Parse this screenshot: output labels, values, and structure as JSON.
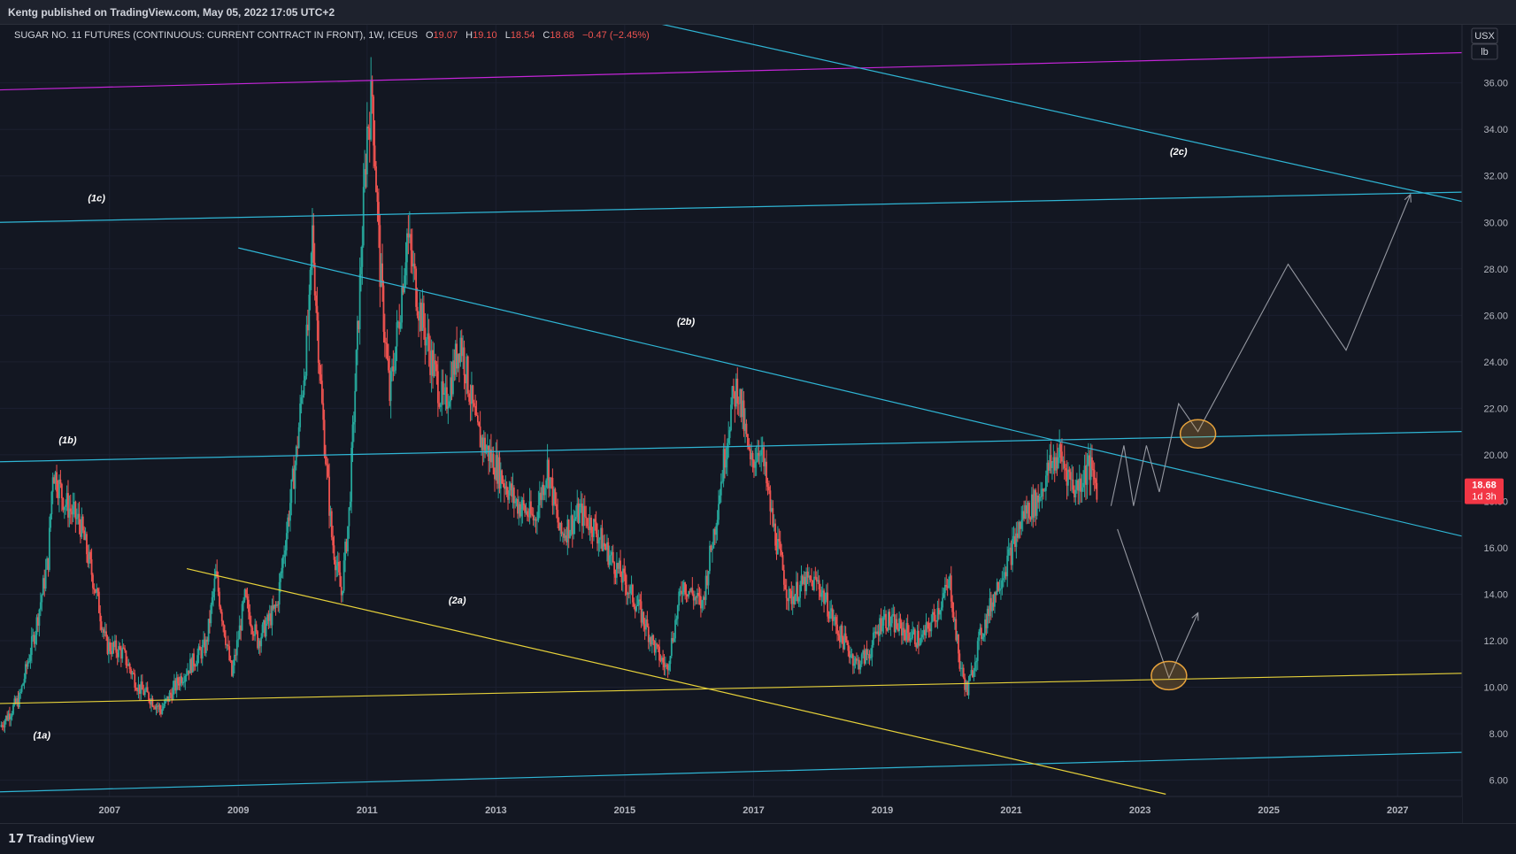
{
  "header": {
    "published": "Kentg published on TradingView.com, May 05, 2022 17:05 UTC+2"
  },
  "footer": {
    "brand": "TradingView",
    "brand_glyph": "17"
  },
  "symbol": {
    "name": "SUGAR NO. 11 FUTURES (CONTINUOUS: CURRENT CONTRACT IN FRONT), 1W, ICEUS",
    "o_label": "O",
    "o": "19.07",
    "h_label": "H",
    "h": "19.10",
    "l_label": "L",
    "l": "18.54",
    "c_label": "C",
    "c": "18.68",
    "change": "−0.47 (−2.45%)"
  },
  "price_scale": {
    "currency": "USX",
    "unit": "lb",
    "last_price": "18.68",
    "countdown": "1d 3h"
  },
  "colors": {
    "bg": "#131722",
    "up": "#26a69a",
    "down": "#ef5350",
    "cyan": "#2fb5d4",
    "magenta": "#c425d8",
    "yellow": "#e6d13a",
    "projection": "#9598a1",
    "circle": "#e6a23c"
  },
  "chart_data": {
    "type": "candlestick",
    "title": "SUGAR NO. 11 FUTURES (CONTINUOUS: CURRENT CONTRACT IN FRONT), 1W, ICEUS",
    "x_ticks": [
      "2007",
      "2009",
      "2011",
      "2013",
      "2015",
      "2017",
      "2019",
      "2021",
      "2023",
      "2025",
      "2027"
    ],
    "y_ticks": [
      "6.00",
      "8.00",
      "10.00",
      "12.00",
      "14.00",
      "16.00",
      "18.00",
      "20.00",
      "22.00",
      "24.00",
      "26.00",
      "28.00",
      "30.00",
      "32.00",
      "34.00",
      "36.00"
    ],
    "xlim": [
      2005.3,
      2028.0
    ],
    "ylim": [
      5.3,
      38.5
    ],
    "series": [
      {
        "interval": "1W",
        "approx_path": [
          [
            2005.3,
            8.3
          ],
          [
            2005.6,
            9.5
          ],
          [
            2005.85,
            12.5
          ],
          [
            2006.05,
            15.5
          ],
          [
            2006.12,
            19.4
          ],
          [
            2006.3,
            18.0
          ],
          [
            2006.55,
            17.0
          ],
          [
            2006.8,
            14.0
          ],
          [
            2006.95,
            11.8
          ],
          [
            2007.2,
            11.5
          ],
          [
            2007.45,
            10.0
          ],
          [
            2007.65,
            9.5
          ],
          [
            2007.8,
            9.0
          ],
          [
            2008.1,
            10.4
          ],
          [
            2008.5,
            11.8
          ],
          [
            2008.65,
            14.8
          ],
          [
            2008.9,
            10.5
          ],
          [
            2009.1,
            13.8
          ],
          [
            2009.3,
            12.0
          ],
          [
            2009.6,
            13.5
          ],
          [
            2009.9,
            20.0
          ],
          [
            2010.1,
            26.0
          ],
          [
            2010.15,
            29.5
          ],
          [
            2010.3,
            22.0
          ],
          [
            2010.45,
            16.5
          ],
          [
            2010.6,
            14.0
          ],
          [
            2010.72,
            17.5
          ],
          [
            2010.85,
            25.0
          ],
          [
            2011.0,
            34.0
          ],
          [
            2011.08,
            35.5
          ],
          [
            2011.2,
            28.0
          ],
          [
            2011.35,
            22.5
          ],
          [
            2011.5,
            26.0
          ],
          [
            2011.62,
            29.5
          ],
          [
            2011.8,
            26.5
          ],
          [
            2012.0,
            24.0
          ],
          [
            2012.2,
            22.0
          ],
          [
            2012.45,
            25.0
          ],
          [
            2012.7,
            21.0
          ],
          [
            2013.0,
            19.5
          ],
          [
            2013.3,
            18.0
          ],
          [
            2013.6,
            17.2
          ],
          [
            2013.8,
            19.5
          ],
          [
            2014.0,
            16.5
          ],
          [
            2014.3,
            17.5
          ],
          [
            2014.5,
            17.0
          ],
          [
            2014.8,
            15.5
          ],
          [
            2015.2,
            13.5
          ],
          [
            2015.5,
            11.5
          ],
          [
            2015.65,
            10.8
          ],
          [
            2015.9,
            14.5
          ],
          [
            2016.2,
            13.5
          ],
          [
            2016.4,
            17.0
          ],
          [
            2016.65,
            22.0
          ],
          [
            2016.75,
            23.0
          ],
          [
            2016.95,
            19.5
          ],
          [
            2017.1,
            20.5
          ],
          [
            2017.3,
            17.0
          ],
          [
            2017.55,
            13.8
          ],
          [
            2017.8,
            14.5
          ],
          [
            2018.0,
            14.5
          ],
          [
            2018.3,
            12.5
          ],
          [
            2018.6,
            11.0
          ],
          [
            2018.8,
            11.5
          ],
          [
            2019.0,
            13.0
          ],
          [
            2019.3,
            12.5
          ],
          [
            2019.6,
            12.0
          ],
          [
            2019.8,
            13.0
          ],
          [
            2020.05,
            14.5
          ],
          [
            2020.2,
            11.0
          ],
          [
            2020.32,
            9.8
          ],
          [
            2020.5,
            12.0
          ],
          [
            2020.8,
            14.5
          ],
          [
            2021.0,
            15.8
          ],
          [
            2021.2,
            17.5
          ],
          [
            2021.4,
            18.0
          ],
          [
            2021.6,
            19.5
          ],
          [
            2021.75,
            20.0
          ],
          [
            2022.0,
            18.5
          ],
          [
            2022.2,
            19.5
          ],
          [
            2022.33,
            18.68
          ]
        ]
      }
    ],
    "annotations": [
      {
        "text": "(1a)",
        "x": 2005.95,
        "y": 7.8
      },
      {
        "text": "(1b)",
        "x": 2006.35,
        "y": 20.5
      },
      {
        "text": "(1c)",
        "x": 2006.8,
        "y": 30.9
      },
      {
        "text": "(2a)",
        "x": 2012.4,
        "y": 13.6
      },
      {
        "text": "(2b)",
        "x": 2015.95,
        "y": 25.6
      },
      {
        "text": "(2c)",
        "x": 2023.6,
        "y": 32.9
      }
    ],
    "trendlines": [
      {
        "color": "magenta",
        "points": [
          [
            2005.3,
            35.7
          ],
          [
            2028.0,
            37.3
          ]
        ]
      },
      {
        "color": "cyan",
        "points": [
          [
            2005.3,
            30.0
          ],
          [
            2028.0,
            31.3
          ]
        ]
      },
      {
        "color": "cyan",
        "points": [
          [
            2005.3,
            19.7
          ],
          [
            2028.0,
            21.0
          ]
        ]
      },
      {
        "color": "cyan",
        "points": [
          [
            2005.3,
            5.5
          ],
          [
            2028.0,
            7.2
          ]
        ]
      },
      {
        "color": "cyan",
        "points": [
          [
            2009.0,
            28.9
          ],
          [
            2028.0,
            16.5
          ]
        ]
      },
      {
        "color": "cyan",
        "points": [
          [
            2014.8,
            39.0
          ],
          [
            2028.0,
            30.9
          ]
        ]
      },
      {
        "color": "yellow",
        "points": [
          [
            2005.3,
            9.3
          ],
          [
            2028.0,
            10.6
          ]
        ]
      },
      {
        "color": "yellow",
        "points": [
          [
            2008.2,
            15.1
          ],
          [
            2023.4,
            5.4
          ]
        ]
      }
    ],
    "projections": [
      {
        "points": [
          [
            2022.55,
            17.8
          ],
          [
            2022.75,
            20.4
          ],
          [
            2022.9,
            17.8
          ],
          [
            2023.1,
            20.4
          ],
          [
            2023.3,
            18.4
          ],
          [
            2023.6,
            22.2
          ],
          [
            2023.9,
            21.0
          ],
          [
            2025.3,
            28.2
          ],
          [
            2026.2,
            24.5
          ],
          [
            2027.2,
            31.2
          ]
        ],
        "arrow": true
      },
      {
        "points": [
          [
            2022.65,
            16.8
          ],
          [
            2023.45,
            10.4
          ],
          [
            2023.9,
            13.2
          ]
        ],
        "arrow": true
      }
    ],
    "circles": [
      {
        "x": 2023.9,
        "y": 20.9
      },
      {
        "x": 2023.45,
        "y": 10.5
      }
    ]
  }
}
